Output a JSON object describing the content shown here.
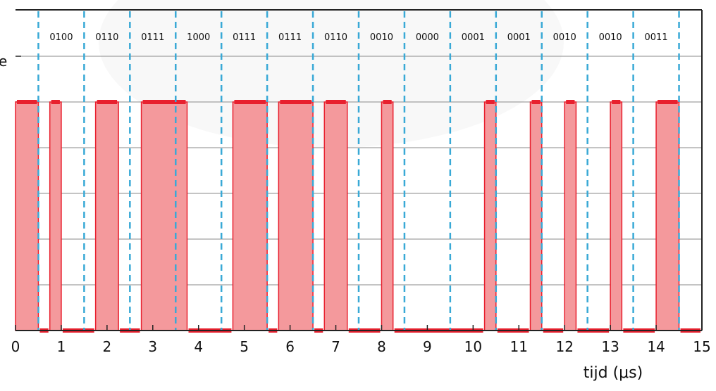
{
  "chart_data": {
    "type": "area",
    "title": "",
    "xlabel": "tijd (μs)",
    "ylabel_fragment": "e",
    "xlim": [
      0,
      15
    ],
    "ylim": [
      0,
      1
    ],
    "x_ticks": [
      "0",
      "1",
      "2",
      "3",
      "4",
      "5",
      "6",
      "7",
      "8",
      "9",
      "10",
      "11",
      "12",
      "13",
      "14",
      "15"
    ],
    "y_grid": [
      0.2,
      0.4,
      0.6,
      0.8,
      1.0
    ],
    "grid": true,
    "symbol_boundaries": [
      0.5,
      1.5,
      2.5,
      3.5,
      4.5,
      5.5,
      6.5,
      7.5,
      8.5,
      9.5,
      10.5,
      11.5,
      12.5,
      13.5,
      14.5
    ],
    "codes": [
      "0100",
      "0110",
      "0111",
      "1000",
      "0111",
      "0111",
      "0110",
      "0010",
      "0000",
      "0001",
      "0001",
      "0010",
      "0010",
      "0011"
    ],
    "high_level": 1.0,
    "low_level": 0.0,
    "pulses": [
      [
        0.0,
        0.5
      ],
      [
        0.75,
        1.0
      ],
      [
        1.75,
        2.25
      ],
      [
        2.75,
        3.75
      ],
      [
        4.75,
        5.5
      ],
      [
        5.75,
        6.5
      ],
      [
        6.75,
        7.25
      ],
      [
        8.0,
        8.25
      ],
      [
        10.25,
        10.5
      ],
      [
        11.25,
        11.5
      ],
      [
        12.0,
        12.25
      ],
      [
        13.0,
        13.25
      ],
      [
        14.0,
        14.5
      ]
    ],
    "colors": {
      "fill": "#f4999c",
      "line": "#e8202e",
      "dashed": "#39a9d6",
      "grid": "#8a8a8a",
      "frame": "#222222"
    }
  }
}
